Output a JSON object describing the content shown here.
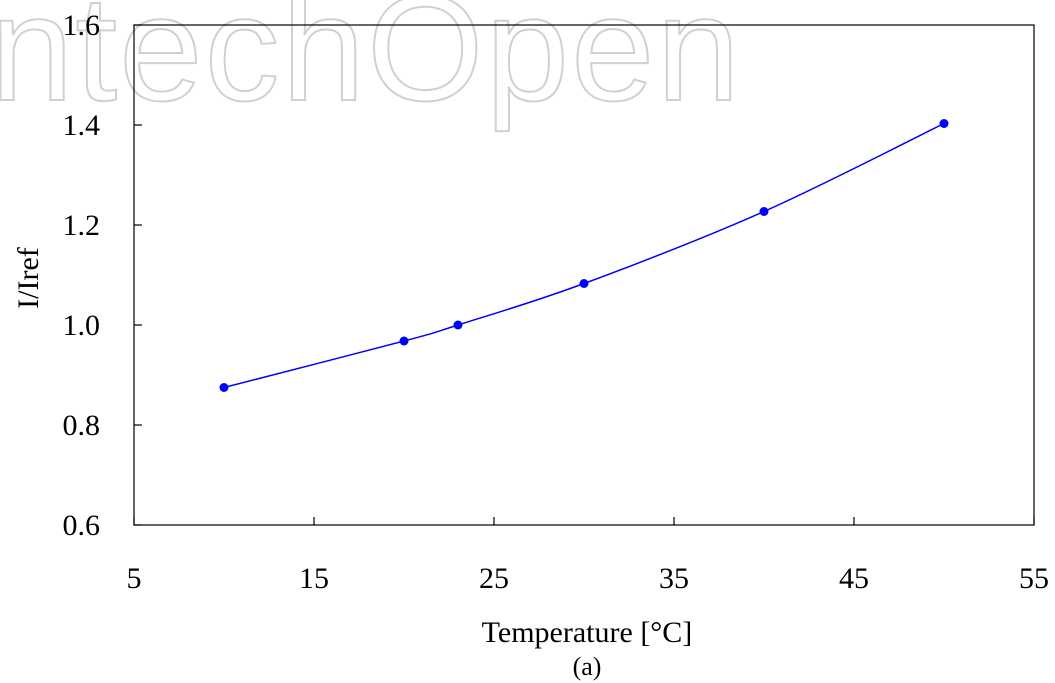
{
  "watermark": "ntechOpen",
  "caption": "(a)",
  "chart_data": {
    "type": "line",
    "title": "",
    "xlabel": "Temperature   [°C]",
    "ylabel": "I/Iref",
    "xlim": [
      5,
      55
    ],
    "ylim": [
      0.6,
      1.6
    ],
    "xticks": [
      5,
      15,
      25,
      35,
      45,
      55
    ],
    "xtick_labels": [
      "5",
      "15",
      "25",
      "35",
      "45",
      "55"
    ],
    "yticks": [
      0.6,
      0.8,
      1.0,
      1.2,
      1.4,
      1.6
    ],
    "ytick_labels": [
      "0.6",
      "0.8",
      "1.0",
      "1.2",
      "1.4",
      "1.6"
    ],
    "grid": false,
    "series": [
      {
        "x": [
          10,
          20,
          23,
          30,
          40,
          50
        ],
        "y": [
          0.875,
          0.968,
          1.0,
          1.083,
          1.227,
          1.403
        ],
        "color": "#0000ff",
        "marker": "circle"
      }
    ]
  }
}
